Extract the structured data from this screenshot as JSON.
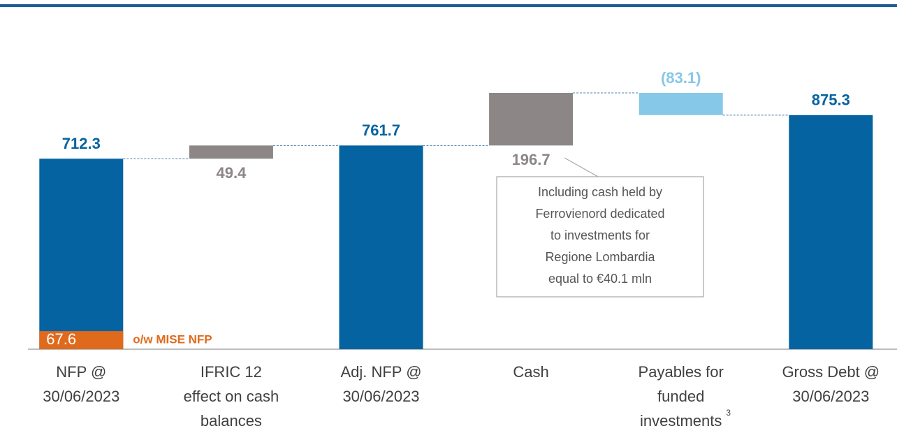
{
  "chart_data": {
    "type": "waterfall",
    "categories": [
      [
        "NFP @",
        "30/06/2023"
      ],
      [
        "IFRIC 12",
        "effect on cash",
        "balances"
      ],
      [
        "Adj. NFP @",
        "30/06/2023"
      ],
      [
        "Cash"
      ],
      [
        "Payables for",
        "funded",
        "investments"
      ],
      [
        "Gross Debt @",
        "30/06/2023"
      ]
    ],
    "measure": [
      "total",
      "relative",
      "total",
      "relative",
      "relative",
      "total"
    ],
    "values": [
      712.3,
      49.4,
      761.7,
      196.7,
      -83.1,
      875.3
    ],
    "value_labels": [
      "712.3",
      "49.4",
      "761.7",
      "196.7",
      "(83.1)",
      "875.3"
    ],
    "colors": {
      "total": "#0563a1",
      "increase": "#8c8786",
      "decrease": "#86c8e8",
      "connector": "#4a7fb0"
    },
    "footnote": "3",
    "sub_segment": {
      "name": "o/w MISE NFP",
      "value": 67.6,
      "color": "#e06a1c"
    },
    "annotation": [
      "Including cash held by",
      "Ferrovienord dedicated",
      "to investments for",
      "Regione Lombardia",
      "equal to €40.1 mln"
    ]
  }
}
